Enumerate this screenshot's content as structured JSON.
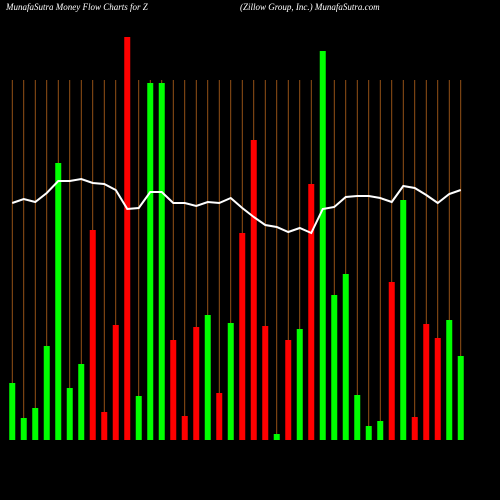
{
  "chart_data": {
    "type": "bar",
    "title": "MunafaSutra  Money Flow  Charts for Z",
    "subtitle": "(Zillow  Group,  Inc.) MunafaSutra.com",
    "categories": [
      null,
      null,
      null,
      null,
      null,
      null,
      null,
      null,
      null,
      null,
      null,
      null,
      null,
      null,
      null,
      null,
      null,
      null,
      null,
      null,
      null,
      null,
      null,
      null,
      null,
      null,
      null,
      null,
      null,
      null,
      null,
      null,
      null,
      null,
      null,
      null,
      null,
      null,
      null,
      null
    ],
    "values": [
      57,
      22,
      32,
      94,
      277,
      52,
      76,
      210,
      28,
      115,
      403,
      44,
      357,
      357,
      100,
      24,
      113,
      125,
      47,
      117,
      207,
      300,
      114,
      6,
      100,
      111,
      256,
      389,
      145,
      166,
      45,
      14,
      19,
      158,
      240,
      23,
      116,
      102,
      120,
      84
    ],
    "bar_colors": [
      "#00ff00",
      "#00ff00",
      "#00ff00",
      "#00ff00",
      "#00ff00",
      "#00ff00",
      "#00ff00",
      "#ff0000",
      "#ff0000",
      "#ff0000",
      "#ff0000",
      "#00ff00",
      "#00ff00",
      "#00ff00",
      "#ff0000",
      "#ff0000",
      "#ff0000",
      "#00ff00",
      "#ff0000",
      "#00ff00",
      "#ff0000",
      "#ff0000",
      "#ff0000",
      "#00ff00",
      "#ff0000",
      "#00ff00",
      "#ff0000",
      "#00ff00",
      "#00ff00",
      "#00ff00",
      "#00ff00",
      "#00ff00",
      "#00ff00",
      "#ff0000",
      "#00ff00",
      "#ff0000",
      "#ff0000",
      "#ff0000",
      "#00ff00",
      "#00ff00"
    ],
    "line_values": [
      237,
      241,
      238,
      247,
      259,
      259,
      261,
      257,
      256,
      250,
      231,
      232,
      248,
      248,
      237,
      237,
      234,
      238,
      237,
      242,
      232,
      223,
      215,
      213,
      208,
      212,
      207,
      231,
      233,
      243,
      244,
      244,
      242,
      238,
      254,
      252,
      245,
      237,
      246,
      250
    ],
    "line_color": "#ffffff",
    "grid_color": "#b8651b",
    "grid": true,
    "ylim": [
      0,
      410
    ]
  }
}
